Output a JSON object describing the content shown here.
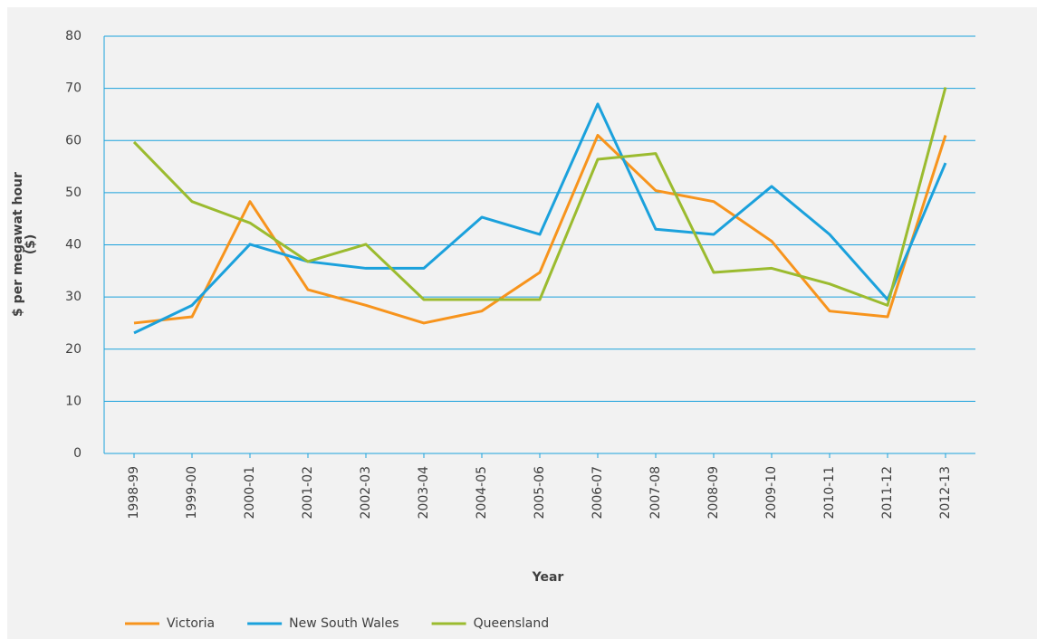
{
  "chart_data": {
    "type": "line",
    "ylabel": [
      "$ per megawat hour",
      "($)"
    ],
    "xlabel": "Year",
    "categories": [
      "1998-99",
      "1999-00",
      "2000-01",
      "2001-02",
      "2002-03",
      "2003-04",
      "2004-05",
      "2005-06",
      "2006-07",
      "2007-08",
      "2008-09",
      "2009-10",
      "2010-11",
      "2011-12",
      "2012-13"
    ],
    "series": [
      {
        "name": "Victoria",
        "color": "#f7941d",
        "values": [
          25,
          26.2,
          48.3,
          31.4,
          28.4,
          25,
          27.3,
          34.7,
          61,
          50.4,
          48.3,
          40.7,
          27.3,
          26.2,
          61
        ]
      },
      {
        "name": "New South Wales",
        "color": "#1ba1dc",
        "values": [
          23.1,
          28.4,
          40.1,
          36.8,
          35.5,
          35.5,
          45.3,
          42,
          67,
          43,
          42,
          51.2,
          42,
          29.5,
          55.7
        ]
      },
      {
        "name": "Queensland",
        "color": "#9bbb2f",
        "values": [
          59.7,
          48.3,
          44.2,
          36.8,
          40.1,
          29.5,
          29.5,
          29.5,
          56.4,
          57.5,
          34.7,
          35.5,
          32.5,
          28.4,
          70.2
        ]
      }
    ],
    "ylim": [
      0,
      80
    ],
    "yticks": [
      0,
      10,
      20,
      30,
      40,
      50,
      60,
      70,
      80
    ],
    "grid": true,
    "legend": "bottom-left"
  }
}
